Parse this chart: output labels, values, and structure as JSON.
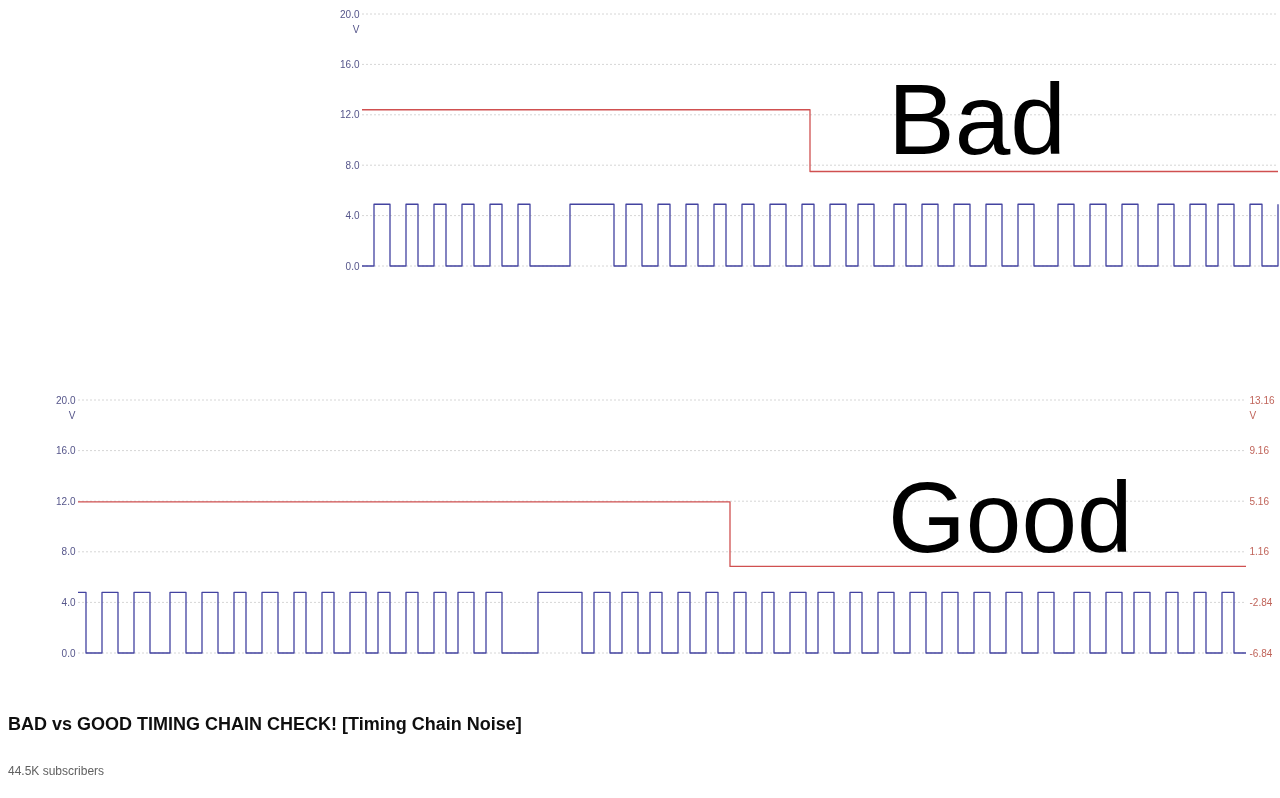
{
  "chart_data": [
    {
      "type": "step",
      "annotations": [
        "Bad"
      ],
      "ylabel": "V",
      "ylim": [
        0,
        20
      ],
      "yticks": [
        {
          "value": 0,
          "label": "0.0"
        },
        {
          "value": 4,
          "label": "4.0"
        },
        {
          "value": 8,
          "label": "8.0"
        },
        {
          "value": 12,
          "label": "12.0"
        },
        {
          "value": 16,
          "label": "16.0"
        },
        {
          "value": 20,
          "label": "20.0"
        }
      ],
      "grid": "y",
      "categories": [
        null,
        null,
        null,
        null,
        null,
        null,
        null,
        null,
        null,
        null,
        null,
        null,
        null,
        null,
        null,
        null,
        null,
        null,
        null,
        null,
        null,
        null,
        null,
        null,
        null,
        null,
        null,
        null,
        null,
        null,
        null,
        null,
        null,
        null,
        null,
        null,
        null,
        null,
        null,
        null,
        null,
        null,
        null,
        null,
        null,
        null,
        null,
        null,
        null,
        null,
        null,
        null,
        null,
        null,
        null,
        null,
        null,
        null,
        null,
        null,
        null,
        null,
        null,
        null,
        null,
        null,
        null,
        null,
        null,
        null,
        null,
        null,
        null,
        null,
        null,
        null,
        null,
        null,
        null,
        null,
        null,
        null,
        null,
        null,
        null,
        null,
        null,
        null,
        null,
        null,
        null,
        null,
        null,
        null,
        null,
        null,
        null,
        null,
        null,
        null,
        null,
        null,
        null,
        null,
        null,
        null,
        null,
        null,
        null,
        null,
        null,
        null,
        null,
        null,
        null,
        null,
        null,
        null,
        null,
        null,
        null,
        null,
        null,
        null,
        null,
        null,
        null,
        null,
        null,
        null,
        null,
        null,
        null,
        null,
        null,
        null,
        null,
        null,
        null,
        null,
        null,
        null,
        null,
        null,
        null,
        null,
        null,
        null,
        null,
        null,
        null,
        null,
        null,
        null,
        null,
        null,
        null,
        null,
        null,
        null,
        null,
        null,
        null,
        null,
        null,
        null,
        null,
        null,
        null,
        null,
        null,
        null,
        null,
        null,
        null,
        null,
        null,
        null,
        null,
        null,
        null,
        null,
        null,
        null,
        null,
        null,
        null,
        null,
        null,
        null,
        null,
        null,
        null,
        null,
        null,
        null,
        null,
        null,
        null,
        null,
        null,
        null,
        null,
        null,
        null,
        null,
        null,
        null,
        null,
        null,
        null,
        null,
        null,
        null,
        null,
        null,
        null,
        null,
        null,
        null,
        null,
        null,
        null,
        null,
        null,
        null,
        null,
        null,
        null,
        null
      ],
      "series": [
        {
          "color": "#4343a0",
          "values": [
            0,
            0,
            0,
            4.9,
            4.9,
            4.9,
            4.9,
            0,
            0,
            0,
            0,
            4.9,
            4.9,
            4.9,
            0,
            0,
            0,
            0,
            4.9,
            4.9,
            4.9,
            0,
            0,
            0,
            0,
            4.9,
            4.9,
            4.9,
            0,
            0,
            0,
            0,
            4.9,
            4.9,
            4.9,
            0,
            0,
            0,
            0,
            4.9,
            4.9,
            4.9,
            0,
            0,
            0,
            0,
            0,
            0,
            0,
            0,
            0,
            0,
            4.9,
            4.9,
            4.9,
            4.9,
            4.9,
            4.9,
            4.9,
            4.9,
            4.9,
            4.9,
            4.9,
            0,
            0,
            0,
            4.9,
            4.9,
            4.9,
            4.9,
            0,
            0,
            0,
            0,
            4.9,
            4.9,
            4.9,
            0,
            0,
            0,
            0,
            4.9,
            4.9,
            4.9,
            0,
            0,
            0,
            0,
            4.9,
            4.9,
            4.9,
            0,
            0,
            0,
            0,
            4.9,
            4.9,
            4.9,
            0,
            0,
            0,
            0,
            4.9,
            4.9,
            4.9,
            4.9,
            0,
            0,
            0,
            0,
            4.9,
            4.9,
            4.9,
            0,
            0,
            0,
            0,
            4.9,
            4.9,
            4.9,
            4.9,
            0,
            0,
            0,
            4.9,
            4.9,
            4.9,
            4.9,
            0,
            0,
            0,
            0,
            0,
            4.9,
            4.9,
            4.9,
            0,
            0,
            0,
            0,
            4.9,
            4.9,
            4.9,
            4.9,
            0,
            0,
            0,
            0,
            4.9,
            4.9,
            4.9,
            4.9,
            0,
            0,
            0,
            0,
            4.9,
            4.9,
            4.9,
            4.9,
            0,
            0,
            0,
            0,
            4.9,
            4.9,
            4.9,
            4.9,
            0,
            0,
            0,
            0,
            0,
            0,
            4.9,
            4.9,
            4.9,
            4.9,
            0,
            0,
            0,
            0,
            4.9,
            4.9,
            4.9,
            4.9,
            0,
            0,
            0,
            0,
            4.9,
            4.9,
            4.9,
            4.9,
            0,
            0,
            0,
            0,
            0,
            4.9,
            4.9,
            4.9,
            4.9,
            0,
            0,
            0,
            0,
            4.9,
            4.9,
            4.9,
            4.9,
            0,
            0,
            0,
            4.9,
            4.9,
            4.9,
            4.9,
            0,
            0,
            0,
            0,
            4.9,
            4.9,
            4.9,
            0,
            0,
            0,
            0,
            4.9
          ]
        },
        {
          "color": "#d05050",
          "values": [
            12.4,
            12.4,
            12.4,
            12.4,
            12.4,
            12.4,
            12.4,
            12.4,
            12.4,
            12.4,
            12.4,
            12.4,
            12.4,
            12.4,
            12.4,
            12.4,
            12.4,
            12.4,
            12.4,
            12.4,
            12.4,
            12.4,
            12.4,
            12.4,
            12.4,
            12.4,
            12.4,
            12.4,
            12.4,
            12.4,
            12.4,
            12.4,
            12.4,
            12.4,
            12.4,
            12.4,
            12.4,
            12.4,
            12.4,
            12.4,
            12.4,
            12.4,
            12.4,
            12.4,
            12.4,
            12.4,
            12.4,
            12.4,
            12.4,
            12.4,
            12.4,
            12.4,
            12.4,
            12.4,
            12.4,
            12.4,
            12.4,
            12.4,
            12.4,
            12.4,
            12.4,
            12.4,
            12.4,
            12.4,
            12.4,
            12.4,
            12.4,
            12.4,
            12.4,
            12.4,
            12.4,
            12.4,
            12.4,
            12.4,
            12.4,
            12.4,
            12.4,
            12.4,
            12.4,
            12.4,
            12.4,
            12.4,
            12.4,
            12.4,
            12.4,
            12.4,
            12.4,
            12.4,
            12.4,
            12.4,
            12.4,
            12.4,
            12.4,
            12.4,
            12.4,
            12.4,
            12.4,
            12.4,
            12.4,
            12.4,
            12.4,
            12.4,
            12.4,
            12.4,
            12.4,
            12.4,
            12.4,
            12.4,
            12.4,
            12.4,
            12.4,
            12.4,
            7.5,
            7.5,
            7.5,
            7.5,
            7.5,
            7.5,
            7.5,
            7.5,
            7.5,
            7.5,
            7.5,
            7.5,
            7.5,
            7.5,
            7.5,
            7.5,
            7.5,
            7.5,
            7.5,
            7.5,
            7.5,
            7.5,
            7.5,
            7.5,
            7.5,
            7.5,
            7.5,
            7.5,
            7.5,
            7.5,
            7.5,
            7.5,
            7.5,
            7.5,
            7.5,
            7.5,
            7.5,
            7.5,
            7.5,
            7.5,
            7.5,
            7.5,
            7.5,
            7.5,
            7.5,
            7.5,
            7.5,
            7.5,
            7.5,
            7.5,
            7.5,
            7.5,
            7.5,
            7.5,
            7.5,
            7.5,
            7.5,
            7.5,
            7.5,
            7.5,
            7.5,
            7.5,
            7.5,
            7.5,
            7.5,
            7.5,
            7.5,
            7.5,
            7.5,
            7.5,
            7.5,
            7.5,
            7.5,
            7.5,
            7.5,
            7.5,
            7.5,
            7.5,
            7.5,
            7.5,
            7.5,
            7.5,
            7.5,
            7.5,
            7.5,
            7.5,
            7.5,
            7.5,
            7.5,
            7.5,
            7.5,
            7.5,
            7.5,
            7.5,
            7.5,
            7.5,
            7.5,
            7.5,
            7.5,
            7.5,
            7.5,
            7.5,
            7.5,
            7.5,
            7.5,
            7.5,
            7.5,
            7.5,
            7.5,
            7.5,
            7.5,
            7.5,
            7.5,
            7.5,
            7.5,
            7.5,
            7.5,
            7.5
          ]
        }
      ]
    },
    {
      "type": "step",
      "title": "BAD vs GOOD TIMING CHAIN CHECK! [Timing Chain Noise]",
      "annotations": [
        "Good",
        "44.5K subscribers"
      ],
      "ylabel": "V",
      "y2label": "V",
      "ylim": [
        0,
        20
      ],
      "yticks": [
        {
          "value": 0,
          "label": "0.0"
        },
        {
          "value": 4,
          "label": "4.0"
        },
        {
          "value": 8,
          "label": "8.0"
        },
        {
          "value": 12,
          "label": "12.0"
        },
        {
          "value": 16,
          "label": "16.0"
        },
        {
          "value": 20,
          "label": "20.0"
        }
      ],
      "y2lim": [
        -6.84,
        13.16
      ],
      "y2ticks": [
        -6.84,
        -2.84,
        1.16,
        5.16,
        9.16,
        13.16
      ],
      "grid": "y",
      "categories": [
        null,
        null,
        null,
        null,
        null,
        null,
        null,
        null,
        null,
        null,
        null,
        null,
        null,
        null,
        null,
        null,
        null,
        null,
        null,
        null,
        null,
        null,
        null,
        null,
        null,
        null,
        null,
        null,
        null,
        null,
        null,
        null,
        null,
        null,
        null,
        null,
        null,
        null,
        null,
        null,
        null,
        null,
        null,
        null,
        null,
        null,
        null,
        null,
        null,
        null,
        null,
        null,
        null,
        null,
        null,
        null,
        null,
        null,
        null,
        null,
        null,
        null,
        null,
        null,
        null,
        null,
        null,
        null,
        null,
        null,
        null,
        null,
        null,
        null,
        null,
        null,
        null,
        null,
        null,
        null,
        null,
        null,
        null,
        null,
        null,
        null,
        null,
        null,
        null,
        null,
        null,
        null,
        null,
        null,
        null,
        null,
        null,
        null,
        null,
        null,
        null,
        null,
        null,
        null,
        null,
        null,
        null,
        null,
        null,
        null,
        null,
        null,
        null,
        null,
        null,
        null,
        null,
        null,
        null,
        null,
        null,
        null,
        null,
        null,
        null,
        null,
        null,
        null,
        null,
        null,
        null,
        null,
        null,
        null,
        null,
        null,
        null,
        null,
        null,
        null,
        null,
        null,
        null,
        null,
        null,
        null,
        null,
        null,
        null,
        null,
        null,
        null,
        null,
        null,
        null,
        null,
        null,
        null,
        null,
        null,
        null,
        null,
        null,
        null,
        null,
        null,
        null,
        null,
        null,
        null,
        null,
        null,
        null,
        null,
        null,
        null,
        null,
        null,
        null,
        null,
        null,
        null,
        null,
        null,
        null,
        null,
        null,
        null,
        null,
        null,
        null,
        null,
        null,
        null,
        null,
        null,
        null,
        null,
        null,
        null,
        null,
        null,
        null,
        null,
        null,
        null,
        null,
        null,
        null,
        null,
        null,
        null,
        null,
        null,
        null,
        null,
        null,
        null,
        null,
        null,
        null,
        null,
        null,
        null,
        null,
        null,
        null,
        null,
        null,
        null,
        null,
        null,
        null,
        null,
        null,
        null,
        null,
        null,
        null,
        null,
        null,
        null,
        null,
        null,
        null,
        null,
        null,
        null,
        null,
        null,
        null,
        null,
        null,
        null,
        null,
        null,
        null,
        null,
        null,
        null,
        null,
        null,
        null,
        null,
        null,
        null,
        null,
        null,
        null,
        null,
        null,
        null,
        null,
        null,
        null,
        null,
        null,
        null,
        null,
        null,
        null,
        null,
        null,
        null,
        null,
        null,
        null,
        null,
        null,
        null,
        null,
        null,
        null
      ],
      "series": [
        {
          "color": "#4343a0",
          "values": [
            4.8,
            4.8,
            0,
            0,
            0,
            0,
            4.8,
            4.8,
            4.8,
            4.8,
            0,
            0,
            0,
            0,
            4.8,
            4.8,
            4.8,
            4.8,
            0,
            0,
            0,
            0,
            0,
            4.8,
            4.8,
            4.8,
            4.8,
            0,
            0,
            0,
            0,
            4.8,
            4.8,
            4.8,
            4.8,
            0,
            0,
            0,
            0,
            4.8,
            4.8,
            4.8,
            0,
            0,
            0,
            0,
            4.8,
            4.8,
            4.8,
            4.8,
            0,
            0,
            0,
            0,
            4.8,
            4.8,
            4.8,
            0,
            0,
            0,
            0,
            4.8,
            4.8,
            4.8,
            0,
            0,
            0,
            0,
            4.8,
            4.8,
            4.8,
            4.8,
            0,
            0,
            0,
            4.8,
            4.8,
            4.8,
            0,
            0,
            0,
            0,
            4.8,
            4.8,
            4.8,
            0,
            0,
            0,
            0,
            4.8,
            4.8,
            4.8,
            0,
            0,
            0,
            4.8,
            4.8,
            4.8,
            4.8,
            0,
            0,
            0,
            4.8,
            4.8,
            4.8,
            4.8,
            0,
            0,
            0,
            0,
            0,
            0,
            0,
            0,
            0,
            4.8,
            4.8,
            4.8,
            4.8,
            4.8,
            4.8,
            4.8,
            4.8,
            4.8,
            4.8,
            4.8,
            0,
            0,
            0,
            4.8,
            4.8,
            4.8,
            4.8,
            0,
            0,
            0,
            4.8,
            4.8,
            4.8,
            4.8,
            0,
            0,
            0,
            4.8,
            4.8,
            4.8,
            0,
            0,
            0,
            0,
            4.8,
            4.8,
            4.8,
            0,
            0,
            0,
            0,
            4.8,
            4.8,
            4.8,
            0,
            0,
            0,
            0,
            4.8,
            4.8,
            4.8,
            0,
            0,
            0,
            0,
            4.8,
            4.8,
            4.8,
            0,
            0,
            0,
            0,
            4.8,
            4.8,
            4.8,
            4.8,
            0,
            0,
            0,
            4.8,
            4.8,
            4.8,
            4.8,
            0,
            0,
            0,
            0,
            4.8,
            4.8,
            4.8,
            0,
            0,
            0,
            0,
            4.8,
            4.8,
            4.8,
            4.8,
            0,
            0,
            0,
            0,
            4.8,
            4.8,
            4.8,
            4.8,
            0,
            0,
            0,
            0,
            4.8,
            4.8,
            4.8,
            4.8,
            0,
            0,
            0,
            0,
            4.8,
            4.8,
            4.8,
            4.8,
            0,
            0,
            0,
            0,
            4.8,
            4.8,
            4.8,
            4.8,
            0,
            0,
            0,
            0,
            4.8,
            4.8,
            4.8,
            4.8,
            0,
            0,
            0,
            0,
            0,
            4.8,
            4.8,
            4.8,
            4.8,
            0,
            0,
            0,
            0,
            4.8,
            4.8,
            4.8,
            4.8,
            0,
            0,
            0,
            4.8,
            4.8,
            4.8,
            4.8,
            0,
            0,
            0,
            0,
            4.8,
            4.8,
            4.8,
            0,
            0,
            0,
            0,
            4.8,
            4.8,
            4.8,
            0,
            0,
            0,
            0,
            4.8,
            4.8,
            4.8,
            0,
            0,
            0,
            0
          ]
        },
        {
          "color": "#d05050",
          "axis": "y2",
          "values": [
            5.1,
            5.1,
            5.1,
            5.1,
            5.1,
            5.1,
            5.1,
            5.1,
            5.1,
            5.1,
            5.1,
            5.1,
            5.1,
            5.1,
            5.1,
            5.1,
            5.1,
            5.1,
            5.1,
            5.1,
            5.1,
            5.1,
            5.1,
            5.1,
            5.1,
            5.1,
            5.1,
            5.1,
            5.1,
            5.1,
            5.1,
            5.1,
            5.1,
            5.1,
            5.1,
            5.1,
            5.1,
            5.1,
            5.1,
            5.1,
            5.1,
            5.1,
            5.1,
            5.1,
            5.1,
            5.1,
            5.1,
            5.1,
            5.1,
            5.1,
            5.1,
            5.1,
            5.1,
            5.1,
            5.1,
            5.1,
            5.1,
            5.1,
            5.1,
            5.1,
            5.1,
            5.1,
            5.1,
            5.1,
            5.1,
            5.1,
            5.1,
            5.1,
            5.1,
            5.1,
            5.1,
            5.1,
            5.1,
            5.1,
            5.1,
            5.1,
            5.1,
            5.1,
            5.1,
            5.1,
            5.1,
            5.1,
            5.1,
            5.1,
            5.1,
            5.1,
            5.1,
            5.1,
            5.1,
            5.1,
            5.1,
            5.1,
            5.1,
            5.1,
            5.1,
            5.1,
            5.1,
            5.1,
            5.1,
            5.1,
            5.1,
            5.1,
            5.1,
            5.1,
            5.1,
            5.1,
            5.1,
            5.1,
            5.1,
            5.1,
            5.1,
            5.1,
            5.1,
            5.1,
            5.1,
            5.1,
            5.1,
            5.1,
            5.1,
            5.1,
            5.1,
            5.1,
            5.1,
            5.1,
            5.1,
            5.1,
            5.1,
            5.1,
            5.1,
            5.1,
            5.1,
            5.1,
            5.1,
            5.1,
            5.1,
            5.1,
            5.1,
            5.1,
            5.1,
            5.1,
            5.1,
            5.1,
            5.1,
            5.1,
            5.1,
            5.1,
            5.1,
            5.1,
            5.1,
            5.1,
            5.1,
            5.1,
            5.1,
            5.1,
            5.1,
            5.1,
            5.1,
            5.1,
            5.1,
            5.1,
            5.1,
            5.1,
            5.1,
            0,
            0,
            0,
            0,
            0,
            0,
            0,
            0,
            0,
            0,
            0,
            0,
            0,
            0,
            0,
            0,
            0,
            0,
            0,
            0,
            0,
            0,
            0,
            0,
            0,
            0,
            0,
            0,
            0,
            0,
            0,
            0,
            0,
            0,
            0,
            0,
            0,
            0,
            0,
            0,
            0,
            0,
            0,
            0,
            0,
            0,
            0,
            0,
            0,
            0,
            0,
            0,
            0,
            0,
            0,
            0,
            0,
            0,
            0,
            0,
            0,
            0,
            0,
            0,
            0,
            0,
            0,
            0,
            0,
            0,
            0,
            0,
            0,
            0,
            0,
            0,
            0,
            0,
            0,
            0,
            0,
            0,
            0,
            0,
            0,
            0,
            0,
            0,
            0,
            0,
            0,
            0,
            0,
            0,
            0,
            0,
            0,
            0,
            0,
            0,
            0,
            0,
            0,
            0,
            0,
            0,
            0,
            0,
            0,
            0,
            0,
            0,
            0,
            0,
            0,
            0,
            0,
            0,
            0,
            0,
            0,
            0,
            0,
            0,
            0,
            0,
            0,
            0,
            0,
            0
          ]
        }
      ]
    }
  ]
}
